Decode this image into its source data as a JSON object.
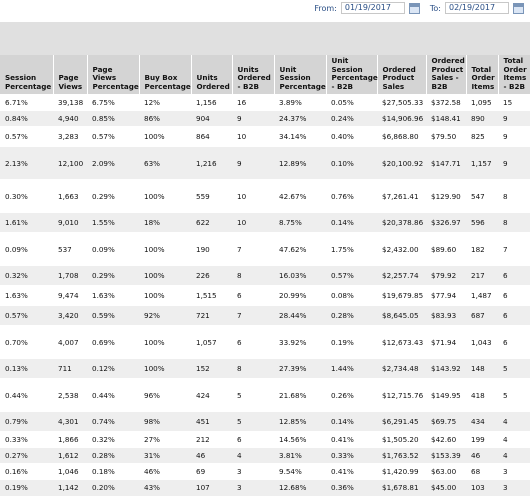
{
  "filter": {
    "from_label": "From:",
    "from_value": "01/19/2017",
    "to_label": "To:",
    "to_value": "02/19/2017",
    "calendar_icon": "calendar-icon"
  },
  "table": {
    "columns": [
      "Session Percentage",
      "Page Views",
      "Page Views Percentage",
      "Buy Box Percentage",
      "Units Ordered",
      "Units Ordered - B2B",
      "Unit Session Percentage",
      "Unit Session Percentage - B2B",
      "Ordered Product Sales",
      "Ordered Product Sales - B2B",
      "Total Order Items",
      "Total Order Items - B2B"
    ],
    "rows": [
      [
        "6.71%",
        "39,138",
        "6.75%",
        "12%",
        "1,156",
        "16",
        "3.89%",
        "0.05%",
        "$27,505.33",
        "$372.58",
        "1,095",
        "15"
      ],
      [
        "0.84%",
        "4,940",
        "0.85%",
        "86%",
        "904",
        "9",
        "24.37%",
        "0.24%",
        "$14,906.96",
        "$148.41",
        "890",
        "9"
      ],
      [
        "0.57%",
        "3,283",
        "0.57%",
        "100%",
        "864",
        "10",
        "34.14%",
        "0.40%",
        "$6,868.80",
        "$79.50",
        "825",
        "9"
      ],
      [
        "2.13%",
        "12,100",
        "2.09%",
        "63%",
        "1,216",
        "9",
        "12.89%",
        "0.10%",
        "$20,100.92",
        "$147.71",
        "1,157",
        "9"
      ],
      [
        "0.30%",
        "1,663",
        "0.29%",
        "100%",
        "559",
        "10",
        "42.67%",
        "0.76%",
        "$7,261.41",
        "$129.90",
        "547",
        "8"
      ],
      [
        "1.61%",
        "9,010",
        "1.55%",
        "18%",
        "622",
        "10",
        "8.75%",
        "0.14%",
        "$20,378.86",
        "$326.97",
        "596",
        "8"
      ],
      [
        "0.09%",
        "537",
        "0.09%",
        "100%",
        "190",
        "7",
        "47.62%",
        "1.75%",
        "$2,432.00",
        "$89.60",
        "182",
        "7"
      ],
      [
        "0.32%",
        "1,708",
        "0.29%",
        "100%",
        "226",
        "8",
        "16.03%",
        "0.57%",
        "$2,257.74",
        "$79.92",
        "217",
        "6"
      ],
      [
        "1.63%",
        "9,474",
        "1.63%",
        "100%",
        "1,515",
        "6",
        "20.99%",
        "0.08%",
        "$19,679.85",
        "$77.94",
        "1,487",
        "6"
      ],
      [
        "0.57%",
        "3,420",
        "0.59%",
        "92%",
        "721",
        "7",
        "28.44%",
        "0.28%",
        "$8,645.05",
        "$83.93",
        "687",
        "6"
      ],
      [
        "0.70%",
        "4,007",
        "0.69%",
        "100%",
        "1,057",
        "6",
        "33.92%",
        "0.19%",
        "$12,673.43",
        "$71.94",
        "1,043",
        "6"
      ],
      [
        "0.13%",
        "711",
        "0.12%",
        "100%",
        "152",
        "8",
        "27.39%",
        "1.44%",
        "$2,734.48",
        "$143.92",
        "148",
        "5"
      ],
      [
        "0.44%",
        "2,538",
        "0.44%",
        "96%",
        "424",
        "5",
        "21.68%",
        "0.26%",
        "$12,715.76",
        "$149.95",
        "418",
        "5"
      ],
      [
        "0.79%",
        "4,301",
        "0.74%",
        "98%",
        "451",
        "5",
        "12.85%",
        "0.14%",
        "$6,291.45",
        "$69.75",
        "434",
        "4"
      ],
      [
        "0.33%",
        "1,866",
        "0.32%",
        "27%",
        "212",
        "6",
        "14.56%",
        "0.41%",
        "$1,505.20",
        "$42.60",
        "199",
        "4"
      ],
      [
        "0.27%",
        "1,612",
        "0.28%",
        "31%",
        "46",
        "4",
        "3.81%",
        "0.33%",
        "$1,763.52",
        "$153.39",
        "46",
        "4"
      ],
      [
        "0.16%",
        "1,046",
        "0.18%",
        "46%",
        "69",
        "3",
        "9.54%",
        "0.41%",
        "$1,420.99",
        "$63.00",
        "68",
        "3"
      ],
      [
        "0.19%",
        "1,142",
        "0.20%",
        "43%",
        "107",
        "3",
        "12.68%",
        "0.36%",
        "$1,678.81",
        "$45.00",
        "103",
        "3"
      ]
    ]
  }
}
